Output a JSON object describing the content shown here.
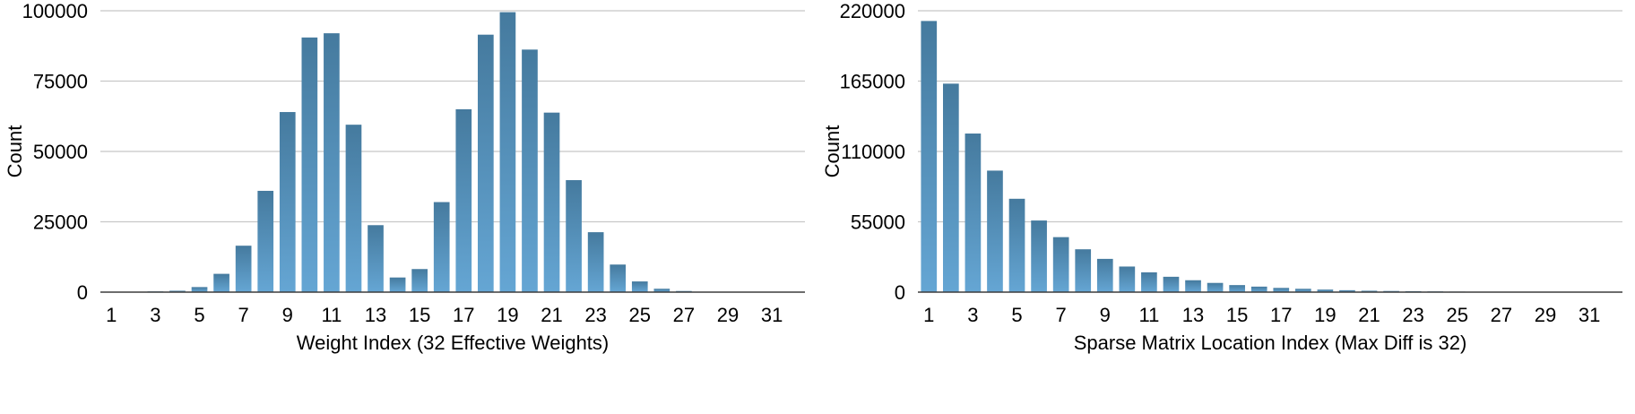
{
  "colors": {
    "bar_top": "#457a9e",
    "bar_bottom": "#65a6d4",
    "grid": "#c8c8c8"
  },
  "chart_data": [
    {
      "type": "bar",
      "title": "",
      "xlabel": "Weight Index (32 Effective Weights)",
      "ylabel": "Count",
      "ylim": [
        0,
        100000
      ],
      "yticks": [
        0,
        25000,
        50000,
        75000,
        100000
      ],
      "xtick_labels": [
        "1",
        "3",
        "5",
        "7",
        "9",
        "11",
        "13",
        "15",
        "17",
        "19",
        "21",
        "23",
        "25",
        "27",
        "29",
        "31"
      ],
      "categories": [
        1,
        2,
        3,
        4,
        5,
        6,
        7,
        8,
        9,
        10,
        11,
        12,
        13,
        14,
        15,
        16,
        17,
        18,
        19,
        20,
        21,
        22,
        23,
        24,
        25,
        26,
        27,
        28,
        29,
        30,
        31,
        32
      ],
      "values": [
        100,
        150,
        250,
        500,
        1800,
        6500,
        16500,
        36000,
        64000,
        90500,
        92000,
        59500,
        23800,
        5200,
        8200,
        32000,
        65000,
        91500,
        99500,
        86200,
        63800,
        39800,
        21300,
        9800,
        3800,
        1200,
        400,
        150,
        100,
        80,
        60,
        50
      ],
      "grid": true
    },
    {
      "type": "bar",
      "title": "",
      "xlabel": "Sparse Matrix Location Index (Max Diff is 32)",
      "ylabel": "Count",
      "ylim": [
        0,
        220000
      ],
      "yticks": [
        0,
        55000,
        110000,
        165000,
        220000
      ],
      "xtick_labels": [
        "1",
        "3",
        "5",
        "7",
        "9",
        "11",
        "13",
        "15",
        "17",
        "19",
        "21",
        "23",
        "25",
        "27",
        "29",
        "31"
      ],
      "categories": [
        1,
        2,
        3,
        4,
        5,
        6,
        7,
        8,
        9,
        10,
        11,
        12,
        13,
        14,
        15,
        16,
        17,
        18,
        19,
        20,
        21,
        22,
        23,
        24,
        25,
        26,
        27,
        28,
        29,
        30,
        31,
        32
      ],
      "values": [
        212000,
        163000,
        124000,
        95000,
        73000,
        56000,
        43000,
        33500,
        26000,
        20000,
        15500,
        12000,
        9300,
        7200,
        5500,
        4300,
        3300,
        2600,
        2000,
        1500,
        1100,
        900,
        700,
        550,
        420,
        330,
        260,
        200,
        160,
        120,
        100,
        80
      ],
      "grid": true
    }
  ]
}
